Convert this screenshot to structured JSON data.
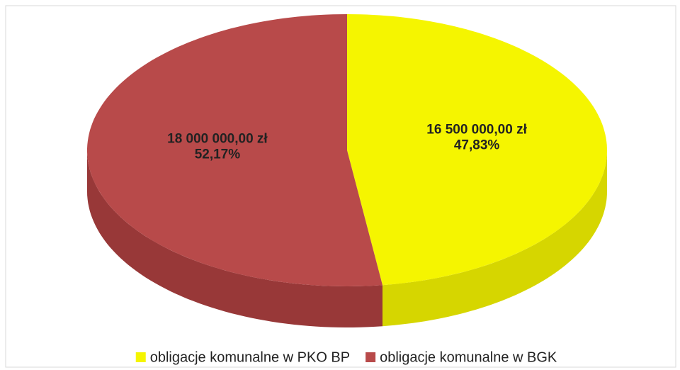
{
  "chart_data": {
    "type": "pie",
    "categories": [
      "obligacje komunalne w PKO BP",
      "obligacje komunalne w BGK"
    ],
    "values": [
      16500000,
      18000000
    ],
    "value_labels": [
      "16 500 000,00 zł",
      "18 000 000,00 zł"
    ],
    "percent_labels": [
      "47,83%",
      "52,17%"
    ],
    "colors": [
      "#f5f500",
      "#b84a4a"
    ],
    "side_colors": [
      "#d6d600",
      "#983838"
    ],
    "legend": "bottom"
  }
}
